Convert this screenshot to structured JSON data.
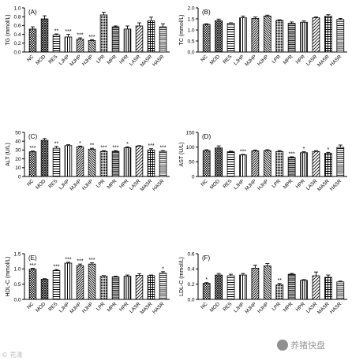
{
  "chart_data": [
    {
      "type": "bar",
      "panel": "(A)",
      "ylabel": "TG (mmol/L)",
      "ylim": [
        0,
        1.0
      ],
      "yticks": [
        "0.0",
        "0.2",
        "0.4",
        "0.6",
        "0.8",
        "1.0"
      ],
      "categories": [
        "NC",
        "MOD",
        "RES",
        "LJHP",
        "MJHP",
        "HJHP",
        "LPR",
        "MPR",
        "HPR",
        "LASR",
        "MASR",
        "HASR"
      ],
      "values": [
        0.52,
        0.75,
        0.39,
        0.34,
        0.29,
        0.26,
        0.84,
        0.57,
        0.52,
        0.59,
        0.71,
        0.57
      ],
      "errors": [
        0.05,
        0.07,
        0.02,
        0.06,
        0.03,
        0.02,
        0.06,
        0.02,
        0.07,
        0.07,
        0.08,
        0.07
      ],
      "significance": [
        "",
        "",
        "**",
        "***",
        "***",
        "***",
        "",
        "",
        "",
        "",
        "",
        ""
      ]
    },
    {
      "type": "bar",
      "panel": "(B)",
      "ylabel": "TC (mmol/L)",
      "ylim": [
        0,
        2.0
      ],
      "yticks": [
        "0.0",
        "0.5",
        "1.0",
        "1.5",
        "2.0"
      ],
      "categories": [
        "NC",
        "MOD",
        "RES",
        "LJHP",
        "MJHP",
        "HJHP",
        "LPR",
        "MPR",
        "HPR",
        "LASR",
        "MASR",
        "HASR"
      ],
      "values": [
        1.25,
        1.42,
        1.3,
        1.55,
        1.52,
        1.63,
        1.43,
        1.3,
        1.35,
        1.55,
        1.62,
        1.47
      ],
      "errors": [
        0.03,
        0.07,
        0.02,
        0.08,
        0.07,
        0.04,
        0.03,
        0.06,
        0.06,
        0.04,
        0.07,
        0.05
      ],
      "significance": [
        "",
        "",
        "",
        "",
        "",
        "",
        "",
        "",
        "",
        "",
        "",
        ""
      ]
    },
    {
      "type": "bar",
      "panel": "(C)",
      "ylabel": "ALT (U/L)",
      "ylim": [
        0,
        50
      ],
      "yticks": [
        "0",
        "10",
        "20",
        "30",
        "40",
        "50"
      ],
      "categories": [
        "NC",
        "MOD",
        "RES",
        "LJHP",
        "MJHP",
        "HJHP",
        "LPR",
        "MPR",
        "HPR",
        "LASR",
        "MASR",
        "HASR"
      ],
      "values": [
        28,
        41,
        32,
        35,
        33.5,
        31,
        28.5,
        28.5,
        32.5,
        34.5,
        30,
        28.5
      ],
      "errors": [
        0.8,
        2.0,
        2.0,
        1.0,
        1.0,
        1.0,
        0.8,
        0.8,
        1.0,
        0.5,
        1.5,
        0.8
      ],
      "significance": [
        "***",
        "",
        "**",
        "",
        "*",
        "**",
        "***",
        "***",
        "*",
        "",
        "***",
        "***"
      ]
    },
    {
      "type": "bar",
      "panel": "(D)",
      "ylabel": "AST (U/L)",
      "ylim": [
        0,
        150
      ],
      "yticks": [
        "0",
        "50",
        "100",
        "150"
      ],
      "categories": [
        "NC",
        "MOD",
        "RES",
        "LJHP",
        "MJHP",
        "HJHP",
        "LPR",
        "MPR",
        "HPR",
        "LASR",
        "MASR",
        "HASR"
      ],
      "values": [
        88,
        97,
        84,
        73,
        87,
        88,
        85,
        65,
        81,
        85,
        79,
        99
      ],
      "errors": [
        3,
        7,
        2,
        2,
        3,
        3,
        3,
        2,
        3,
        3,
        3,
        8
      ],
      "significance": [
        "",
        "",
        "",
        "***",
        "",
        "",
        "",
        "***",
        "*",
        "",
        "*",
        ""
      ]
    },
    {
      "type": "bar",
      "panel": "(E)",
      "ylabel": "HDL-C (mmol/L)",
      "ylim": [
        0,
        1.5
      ],
      "yticks": [
        "0.0",
        "0.5",
        "1.0",
        "1.5"
      ],
      "categories": [
        "NC",
        "MOD",
        "RES",
        "LJHP",
        "MJHP",
        "HJHP",
        "LPR",
        "MPR",
        "HPR",
        "LASR",
        "MASR",
        "HASR"
      ],
      "values": [
        0.99,
        0.66,
        0.95,
        1.19,
        1.11,
        1.16,
        0.76,
        0.74,
        0.76,
        0.79,
        0.78,
        0.86
      ],
      "errors": [
        0.03,
        0.02,
        0.03,
        0.03,
        0.05,
        0.04,
        0.02,
        0.02,
        0.04,
        0.05,
        0.02,
        0.05
      ],
      "significance": [
        "***",
        "",
        "***",
        "***",
        "***",
        "***",
        "",
        "",
        "",
        "",
        "",
        "*"
      ]
    },
    {
      "type": "bar",
      "panel": "(F)",
      "ylabel": "LDL-C (mmol/L)",
      "ylim": [
        0,
        0.6
      ],
      "yticks": [
        "0.0",
        "0.2",
        "0.4",
        "0.6"
      ],
      "categories": [
        "NC",
        "MOD",
        "RES",
        "LJHP",
        "MJHP",
        "HJHP",
        "LPR",
        "MPR",
        "HPR",
        "LASR",
        "MASR",
        "HASR"
      ],
      "values": [
        0.21,
        0.32,
        0.31,
        0.32,
        0.41,
        0.44,
        0.19,
        0.33,
        0.25,
        0.31,
        0.29,
        0.23
      ],
      "errors": [
        0.01,
        0.02,
        0.02,
        0.02,
        0.04,
        0.03,
        0.02,
        0.01,
        0.01,
        0.05,
        0.03,
        0.01
      ],
      "significance": [
        "*",
        "",
        "",
        "",
        "",
        "",
        "**",
        "",
        "",
        "",
        "",
        ""
      ]
    }
  ],
  "watermarks": {
    "left": "© 花漾",
    "right": "养猪快盘"
  }
}
